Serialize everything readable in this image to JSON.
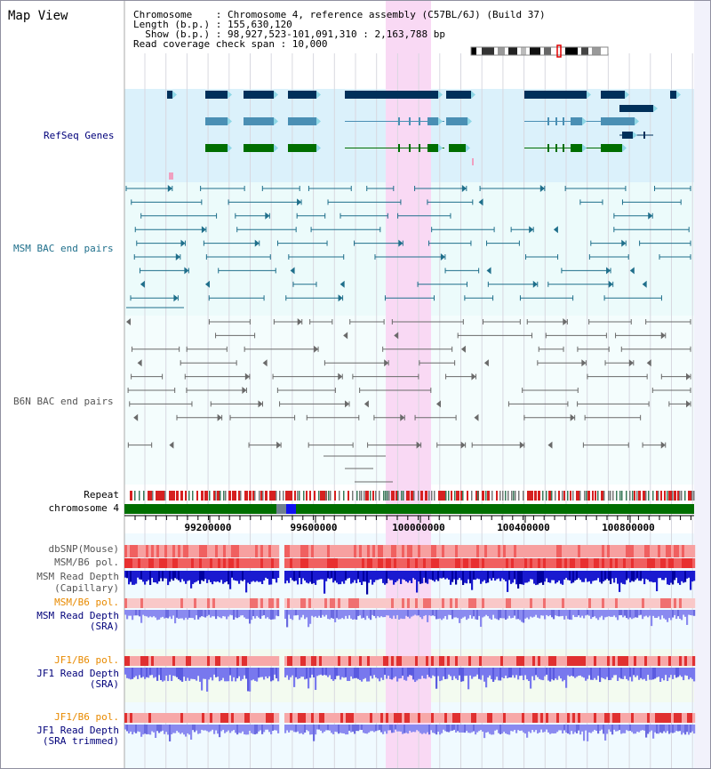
{
  "page_title": "Map View",
  "info": {
    "line1": "Chromosome    : Chromosome 4, reference assembly (C57BL/6J) (Build 37)",
    "line2": "Length (b.p.) : 155,630,120",
    "line3": "  Show (b.p.) : 98,927,523-101,091,310 : 2,163,788 bp",
    "line4": "Read coverage check span : 10,000"
  },
  "tracks": {
    "refseq": "RefSeq Genes",
    "msm_bac": "MSM BAC end pairs",
    "b6n_bac": "B6N BAC end pairs",
    "repeat": "Repeat",
    "chromosome": "chromosome 4",
    "dbsnp": "dbSNP(Mouse)",
    "msm_pol": "MSM/B6 pol.",
    "msm_depth_cap_1": "MSM Read Depth",
    "msm_depth_cap_2": "(Capillary)",
    "msm_pol_sra": "MSM/B6 pol.",
    "msm_depth_sra_1": "MSM Read Depth",
    "msm_depth_sra_2": "(SRA)",
    "jf1_pol": "JF1/B6 pol.",
    "jf1_depth_1": "JF1 Read Depth",
    "jf1_depth_2": "(SRA)",
    "jf1_pol_trim": "JF1/B6 pol.",
    "jf1_trim_1": "JF1 Read Depth",
    "jf1_trim_2": "(SRA trimmed)"
  },
  "axis_ticks": [
    "99200000",
    "99600000",
    "100000000",
    "100400000",
    "100800000"
  ],
  "colors": {
    "refseq_bg": "#dbf1fb",
    "msm_bg": "#ecfbfb",
    "highlight": "#f9d9f4",
    "gene_navy": "#00305a",
    "gene_blue": "#4a8fb4",
    "gene_green": "#006e00",
    "msm_line": "#1f6f8b",
    "b6n_line": "#6a6a6a",
    "label_blue": "#00007a",
    "label_orange": "#e88a00",
    "snp_red": "#f04040",
    "depth_blue": "#1a1ad0",
    "depth_light": "#8080f0"
  }
}
